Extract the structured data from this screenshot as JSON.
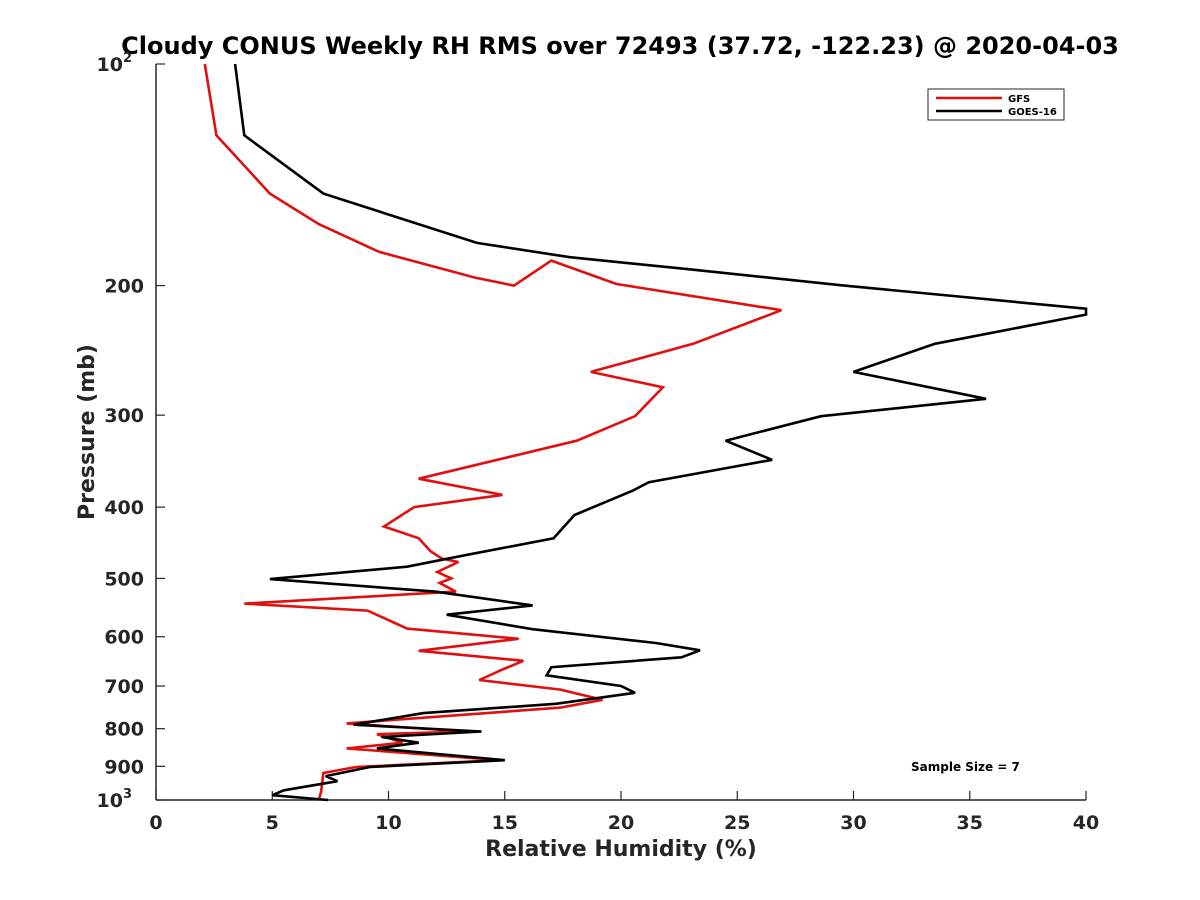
{
  "chart_data": {
    "type": "line",
    "title": "Cloudy CONUS Weekly RH RMS over 72493 (37.72, -122.23) @ 2020-04-03",
    "xlabel": "Relative Humidity (%)",
    "ylabel": "Pressure (mb)",
    "xlim": [
      0,
      40
    ],
    "ylim": [
      100,
      1000
    ],
    "y_scale": "log",
    "y_reversed": true,
    "grid": false,
    "legend_position": "top-right",
    "x_ticks": [
      0,
      5,
      10,
      15,
      20,
      25,
      30,
      35,
      40
    ],
    "y_ticks": [
      {
        "value": 100,
        "base": "10",
        "exp": "2"
      },
      {
        "value": 200,
        "label": "200"
      },
      {
        "value": 300,
        "label": "300"
      },
      {
        "value": 400,
        "label": "400"
      },
      {
        "value": 500,
        "label": "500"
      },
      {
        "value": 600,
        "label": "600"
      },
      {
        "value": 700,
        "label": "700"
      },
      {
        "value": 800,
        "label": "800"
      },
      {
        "value": 900,
        "label": "900"
      },
      {
        "value": 1000,
        "base": "10",
        "exp": "3"
      }
    ],
    "series": [
      {
        "name": "GFS",
        "color": "#e01010",
        "points": [
          [
            2.1,
            100
          ],
          [
            2.6,
            125
          ],
          [
            4.9,
            150
          ],
          [
            7.0,
            165
          ],
          [
            9.6,
            180
          ],
          [
            13.7,
            195
          ],
          [
            15.4,
            200
          ],
          [
            17.0,
            185
          ],
          [
            19.8,
            199
          ],
          [
            26.9,
            216
          ],
          [
            23.1,
            240
          ],
          [
            18.7,
            262
          ],
          [
            21.8,
            275
          ],
          [
            20.6,
            301
          ],
          [
            18.1,
            325
          ],
          [
            11.3,
            366
          ],
          [
            14.9,
            385
          ],
          [
            11.1,
            400
          ],
          [
            9.8,
            425
          ],
          [
            11.3,
            441
          ],
          [
            11.8,
            459
          ],
          [
            12.3,
            470
          ],
          [
            13.0,
            475
          ],
          [
            12.1,
            490
          ],
          [
            12.7,
            500
          ],
          [
            12.2,
            507
          ],
          [
            12.9,
            521
          ],
          [
            3.8,
            541
          ],
          [
            9.1,
            553
          ],
          [
            10.8,
            585
          ],
          [
            15.6,
            604
          ],
          [
            11.3,
            627
          ],
          [
            15.8,
            647
          ],
          [
            14.9,
            665
          ],
          [
            13.9,
            687
          ],
          [
            17.4,
            708
          ],
          [
            19.2,
            731
          ],
          [
            17.4,
            749
          ],
          [
            8.2,
            787
          ],
          [
            13.3,
            807
          ],
          [
            9.5,
            814
          ],
          [
            10.6,
            836
          ],
          [
            8.2,
            851
          ],
          [
            14.8,
            883
          ],
          [
            8.6,
            902
          ],
          [
            7.2,
            919
          ],
          [
            7.1,
            974
          ],
          [
            7.0,
            1000
          ]
        ]
      },
      {
        "name": "GOES-16",
        "color": "#000000",
        "points": [
          [
            3.4,
            100
          ],
          [
            3.8,
            125
          ],
          [
            7.2,
            150
          ],
          [
            13.8,
            175
          ],
          [
            17.8,
            183
          ],
          [
            22.9,
            190
          ],
          [
            29.6,
            200
          ],
          [
            40.0,
            215
          ],
          [
            40.0,
            219
          ],
          [
            33.5,
            240
          ],
          [
            30.0,
            262
          ],
          [
            35.7,
            285
          ],
          [
            28.6,
            301
          ],
          [
            24.5,
            325
          ],
          [
            26.5,
            345
          ],
          [
            21.2,
            370
          ],
          [
            20.5,
            380
          ],
          [
            18.0,
            410
          ],
          [
            17.1,
            441
          ],
          [
            13.3,
            465
          ],
          [
            10.8,
            482
          ],
          [
            4.9,
            501
          ],
          [
            12.0,
            521
          ],
          [
            16.2,
            544
          ],
          [
            12.5,
            560
          ],
          [
            16.2,
            586
          ],
          [
            21.5,
            612
          ],
          [
            23.4,
            626
          ],
          [
            22.6,
            640
          ],
          [
            17.0,
            660
          ],
          [
            16.8,
            677
          ],
          [
            20.0,
            700
          ],
          [
            20.6,
            715
          ],
          [
            17.2,
            740
          ],
          [
            11.5,
            762
          ],
          [
            8.5,
            790
          ],
          [
            14.0,
            807
          ],
          [
            9.7,
            821
          ],
          [
            11.3,
            836
          ],
          [
            9.5,
            851
          ],
          [
            15.0,
            883
          ],
          [
            9.2,
            902
          ],
          [
            7.3,
            928
          ],
          [
            7.8,
            943
          ],
          [
            5.5,
            970
          ],
          [
            5.0,
            985
          ],
          [
            7.4,
            1000
          ]
        ]
      }
    ],
    "annotations": [
      "Sample Size = 7"
    ]
  }
}
